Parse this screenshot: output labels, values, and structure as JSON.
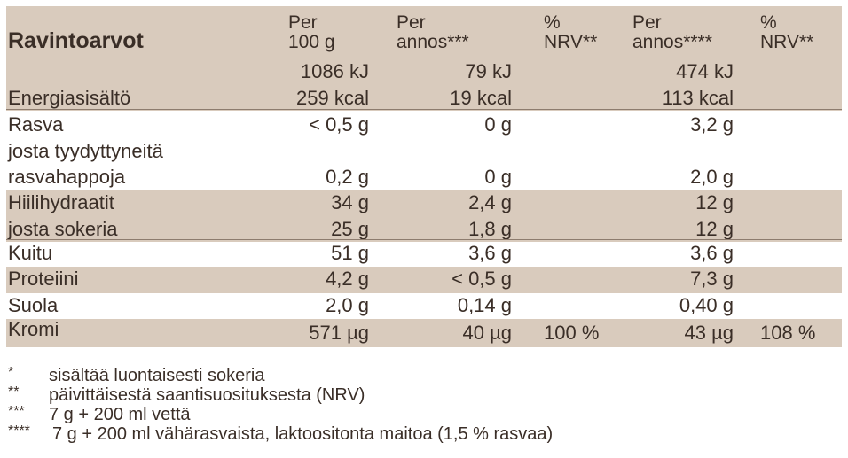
{
  "header": {
    "title": "Ravintoarvot",
    "col1": [
      "Per",
      "100 g"
    ],
    "col2": [
      "Per",
      "annos***"
    ],
    "col3": [
      "%",
      "NRV**"
    ],
    "col4": [
      "Per",
      "annos****"
    ],
    "col5": [
      "%",
      "NRV**"
    ]
  },
  "energy": {
    "label": "Energiasisältö",
    "kj": [
      "1086 kJ",
      "79 kJ",
      "474 kJ"
    ],
    "kcal": [
      "259 kcal",
      "19 kcal",
      "113 kcal"
    ]
  },
  "rows": [
    {
      "label": "Rasva",
      "v1": "< 0,5 g",
      "v2": "0 g",
      "v3": "",
      "v4": "3,2 g",
      "v5": ""
    },
    {
      "label1": "josta tyydyttyneitä",
      "label2": "rasvahappoja",
      "v1": "0,2 g",
      "v2": "0 g",
      "v3": "",
      "v4": "2,0 g",
      "v5": ""
    },
    {
      "label": "Hiilihydraatit",
      "v1": "34 g",
      "v2": "2,4 g",
      "v3": "",
      "v4": "12 g",
      "v5": ""
    },
    {
      "label": "josta sokeria",
      "v1": "25 g",
      "v2": "1,8 g",
      "v3": "",
      "v4": "12 g",
      "v5": ""
    },
    {
      "label": "Kuitu",
      "v1": "51 g",
      "v2": "3,6 g",
      "v3": "",
      "v4": "3,6 g",
      "v5": ""
    },
    {
      "label": "Proteiini",
      "v1": "4,2 g",
      "v2": "< 0,5 g",
      "v3": "",
      "v4": "7,3 g",
      "v5": ""
    },
    {
      "label": "Suola",
      "v1": "2,0 g",
      "v2": "0,14 g",
      "v3": "",
      "v4": "0,40 g",
      "v5": ""
    },
    {
      "label": "Kromi",
      "v1": "571 µg",
      "v2": "40 µg",
      "v3": "100 %",
      "v4": "43 µg",
      "v5": "108 %"
    }
  ],
  "footnotes": [
    {
      "mark": "*",
      "text": "sisältää luontaisesti sokeria"
    },
    {
      "mark": "**",
      "text": "päivittäisestä saantisuosituksesta (NRV)"
    },
    {
      "mark": "***",
      "text": "7 g + 200 ml vettä"
    },
    {
      "mark": "****",
      "text": "7 g + 200 ml vähärasvaista, laktoositonta maitoa (1,5 % rasvaa)"
    }
  ],
  "colors": {
    "shade": "#d9cbbd",
    "text": "#3a2e27"
  }
}
